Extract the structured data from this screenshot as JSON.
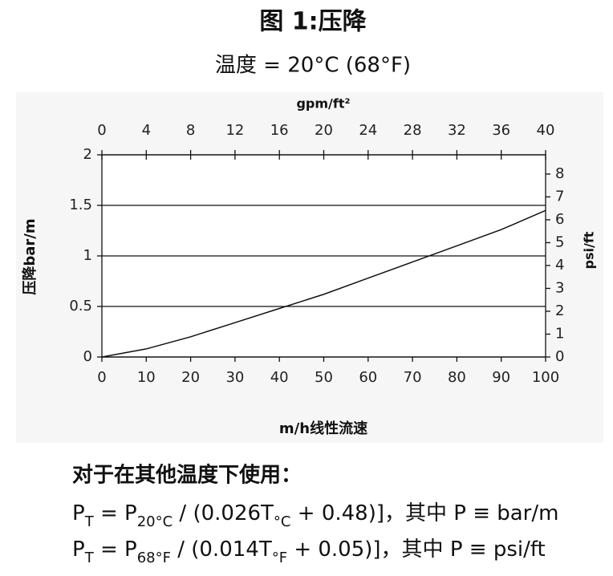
{
  "chart_data": {
    "type": "line",
    "title": "图 1:压降",
    "subtitle": "温度 = 20°C (68°F)",
    "x_label": "m/h线性流速",
    "y_label": "压降bar/m",
    "x2_label": "gpm/ft²",
    "y2_label": "psi/ft",
    "x": [
      0,
      10,
      20,
      30,
      40,
      50,
      60,
      70,
      80,
      90,
      100
    ],
    "series": [
      {
        "color": "#111111",
        "values": [
          0,
          0.08,
          0.2,
          0.34,
          0.48,
          0.62,
          0.78,
          0.94,
          1.1,
          1.26,
          1.45
        ]
      }
    ],
    "xlim": [
      0,
      100
    ],
    "xticks": [
      0,
      10,
      20,
      30,
      40,
      50,
      60,
      70,
      80,
      90,
      100
    ],
    "ylim": [
      0,
      2
    ],
    "yticks": [
      0,
      0.5,
      1,
      1.5,
      2
    ],
    "x2lim": [
      0,
      40
    ],
    "x2ticks": [
      0,
      4,
      8,
      12,
      16,
      20,
      24,
      28,
      32,
      36,
      40
    ],
    "y2lim": [
      0,
      8.84
    ],
    "y2ticks": [
      0,
      1,
      2,
      3,
      4,
      5,
      6,
      7,
      8
    ],
    "grid": true
  },
  "notes": {
    "heading": "对于在其他温度下使用：",
    "formulas": [
      [
        "P",
        "T",
        " = P",
        "20°C",
        " / (0.026T",
        "°C",
        " + 0.48)]，其中 P ≡ bar/m"
      ],
      [
        "P",
        "T",
        " = P",
        "68°F",
        " / (0.014T",
        "°F",
        " + 0.05)]，其中 P ≡ psi/ft"
      ]
    ]
  }
}
